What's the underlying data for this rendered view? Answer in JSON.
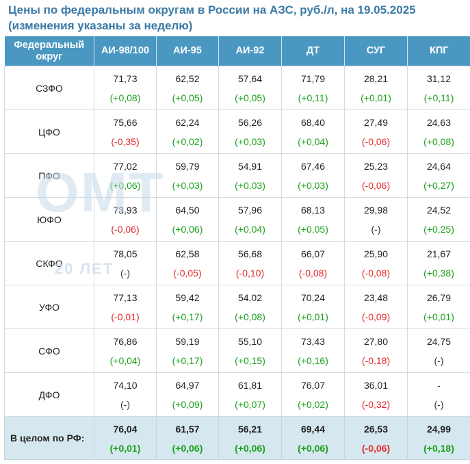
{
  "title_line1": "Цены по федеральным округам в России на АЗС, руб./л, на 19.05.2025",
  "title_line2": "(изменения указаны за неделю)",
  "header": {
    "col0_line1": "Федеральный",
    "col0_line2": "округ",
    "cols": [
      "АИ-98/100",
      "АИ-95",
      "АИ-92",
      "ДТ",
      "СУГ",
      "КПГ"
    ]
  },
  "rows": [
    {
      "region": "СЗФО",
      "cells": [
        {
          "value": "71,73",
          "change": "(+0,08)",
          "trend": "pos"
        },
        {
          "value": "62,52",
          "change": "(+0,05)",
          "trend": "pos"
        },
        {
          "value": "57,64",
          "change": "(+0,05)",
          "trend": "pos"
        },
        {
          "value": "71,79",
          "change": "(+0,11)",
          "trend": "pos"
        },
        {
          "value": "28,21",
          "change": "(+0,01)",
          "trend": "pos"
        },
        {
          "value": "31,12",
          "change": "(+0,11)",
          "trend": "pos"
        }
      ]
    },
    {
      "region": "ЦФО",
      "cells": [
        {
          "value": "75,66",
          "change": "(-0,35)",
          "trend": "neg"
        },
        {
          "value": "62,24",
          "change": "(+0,02)",
          "trend": "pos"
        },
        {
          "value": "56,26",
          "change": "(+0,03)",
          "trend": "pos"
        },
        {
          "value": "68,40",
          "change": "(+0,04)",
          "trend": "pos"
        },
        {
          "value": "27,49",
          "change": "(-0,06)",
          "trend": "neg"
        },
        {
          "value": "24,63",
          "change": "(+0,08)",
          "trend": "pos"
        }
      ]
    },
    {
      "region": "ПФО",
      "cells": [
        {
          "value": "77,02",
          "change": "(+0,06)",
          "trend": "pos"
        },
        {
          "value": "59,79",
          "change": "(+0,03)",
          "trend": "pos"
        },
        {
          "value": "54,91",
          "change": "(+0,03)",
          "trend": "pos"
        },
        {
          "value": "67,46",
          "change": "(+0,03)",
          "trend": "pos"
        },
        {
          "value": "25,23",
          "change": "(-0,06)",
          "trend": "neg"
        },
        {
          "value": "24,64",
          "change": "(+0,27)",
          "trend": "pos"
        }
      ]
    },
    {
      "region": "ЮФО",
      "cells": [
        {
          "value": "73,93",
          "change": "(-0,06)",
          "trend": "neg"
        },
        {
          "value": "64,50",
          "change": "(+0,06)",
          "trend": "pos"
        },
        {
          "value": "57,96",
          "change": "(+0,04)",
          "trend": "pos"
        },
        {
          "value": "68,13",
          "change": "(+0,05)",
          "trend": "pos"
        },
        {
          "value": "29,98",
          "change": "(-)",
          "trend": "neu"
        },
        {
          "value": "24,52",
          "change": "(+0,25)",
          "trend": "pos"
        }
      ]
    },
    {
      "region": "СКФО",
      "cells": [
        {
          "value": "78,05",
          "change": "(-)",
          "trend": "neu"
        },
        {
          "value": "62,58",
          "change": "(-0,05)",
          "trend": "neg"
        },
        {
          "value": "56,68",
          "change": "(-0,10)",
          "trend": "neg"
        },
        {
          "value": "66,07",
          "change": "(-0,08)",
          "trend": "neg"
        },
        {
          "value": "25,90",
          "change": "(-0,08)",
          "trend": "neg"
        },
        {
          "value": "21,67",
          "change": "(+0,38)",
          "trend": "pos"
        }
      ]
    },
    {
      "region": "УФО",
      "cells": [
        {
          "value": "77,13",
          "change": "(-0,01)",
          "trend": "neg"
        },
        {
          "value": "59,42",
          "change": "(+0,17)",
          "trend": "pos"
        },
        {
          "value": "54,02",
          "change": "(+0,08)",
          "trend": "pos"
        },
        {
          "value": "70,24",
          "change": "(+0,01)",
          "trend": "pos"
        },
        {
          "value": "23,48",
          "change": "(-0,09)",
          "trend": "neg"
        },
        {
          "value": "26,79",
          "change": "(+0,01)",
          "trend": "pos"
        }
      ]
    },
    {
      "region": "СФО",
      "cells": [
        {
          "value": "76,86",
          "change": "(+0,04)",
          "trend": "pos"
        },
        {
          "value": "59,19",
          "change": "(+0,17)",
          "trend": "pos"
        },
        {
          "value": "55,10",
          "change": "(+0,15)",
          "trend": "pos"
        },
        {
          "value": "73,43",
          "change": "(+0,16)",
          "trend": "pos"
        },
        {
          "value": "27,80",
          "change": "(-0,18)",
          "trend": "neg"
        },
        {
          "value": "24,75",
          "change": "(-)",
          "trend": "neu"
        }
      ]
    },
    {
      "region": "ДФО",
      "cells": [
        {
          "value": "74,10",
          "change": "(-)",
          "trend": "neu"
        },
        {
          "value": "64,97",
          "change": "(+0,09)",
          "trend": "pos"
        },
        {
          "value": "61,81",
          "change": "(+0,07)",
          "trend": "pos"
        },
        {
          "value": "76,07",
          "change": "(+0,02)",
          "trend": "pos"
        },
        {
          "value": "36,01",
          "change": "(-0,32)",
          "trend": "neg"
        },
        {
          "value": "-",
          "change": "(-)",
          "trend": "neu"
        }
      ]
    }
  ],
  "total": {
    "region": "В целом по РФ:",
    "cells": [
      {
        "value": "76,04",
        "change": "(+0,01)",
        "trend": "pos"
      },
      {
        "value": "61,57",
        "change": "(+0,06)",
        "trend": "pos"
      },
      {
        "value": "56,21",
        "change": "(+0,06)",
        "trend": "pos"
      },
      {
        "value": "69,44",
        "change": "(+0,06)",
        "trend": "pos"
      },
      {
        "value": "26,53",
        "change": "(-0,06)",
        "trend": "neg"
      },
      {
        "value": "24,99",
        "change": "(+0,18)",
        "trend": "pos"
      }
    ]
  },
  "watermark": {
    "logo": "ОМТ",
    "years": "20 ЛЕТ"
  },
  "colors": {
    "title": "#3a7aa6",
    "header_bg": "#4a98c2",
    "total_bg": "#d6e8ef",
    "positive": "#1aa01a",
    "negative": "#e22a2a"
  }
}
